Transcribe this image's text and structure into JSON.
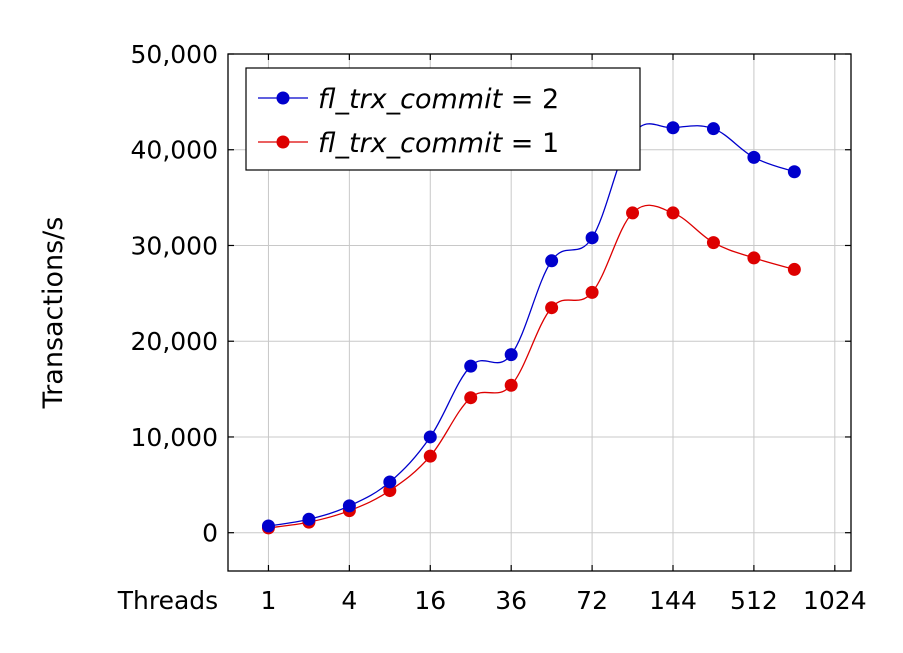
{
  "chart_data": {
    "type": "line",
    "ylabel": "Transactions/s",
    "xlabel": "",
    "x_axis_prefix_label": "Threads",
    "x_tick_labels": [
      "1",
      "4",
      "16",
      "36",
      "72",
      "144",
      "512",
      "1024"
    ],
    "x_tick_positions": [
      1,
      3,
      5,
      7,
      9,
      11,
      13,
      15
    ],
    "y_ticks": [
      0,
      10000,
      20000,
      30000,
      40000,
      50000
    ],
    "y_tick_labels": [
      "0",
      "10,000",
      "20,000",
      "30,000",
      "40,000",
      "50,000"
    ],
    "ylim": [
      -4000,
      50000
    ],
    "xlim": [
      0.0,
      15.4
    ],
    "grid": true,
    "legend_position": "top-left",
    "x": [
      1,
      2,
      3,
      4,
      5,
      6,
      7,
      8,
      9,
      10,
      11,
      12,
      13,
      14
    ],
    "series": [
      {
        "name_parts": [
          "fl",
          "_",
          "trx",
          "_",
          "commit",
          " = 2"
        ],
        "color": "#0000cc",
        "values": [
          700,
          1400,
          2800,
          5300,
          10000,
          17400,
          18600,
          28400,
          30800,
          41600,
          42300,
          42200,
          39200,
          37700
        ]
      },
      {
        "name_parts": [
          "fl",
          "_",
          "trx",
          "_",
          "commit",
          " = 1"
        ],
        "color": "#dd0000",
        "values": [
          500,
          1100,
          2300,
          4400,
          8000,
          14100,
          15400,
          23500,
          25100,
          33400,
          33400,
          30300,
          28700,
          27500
        ]
      }
    ]
  }
}
